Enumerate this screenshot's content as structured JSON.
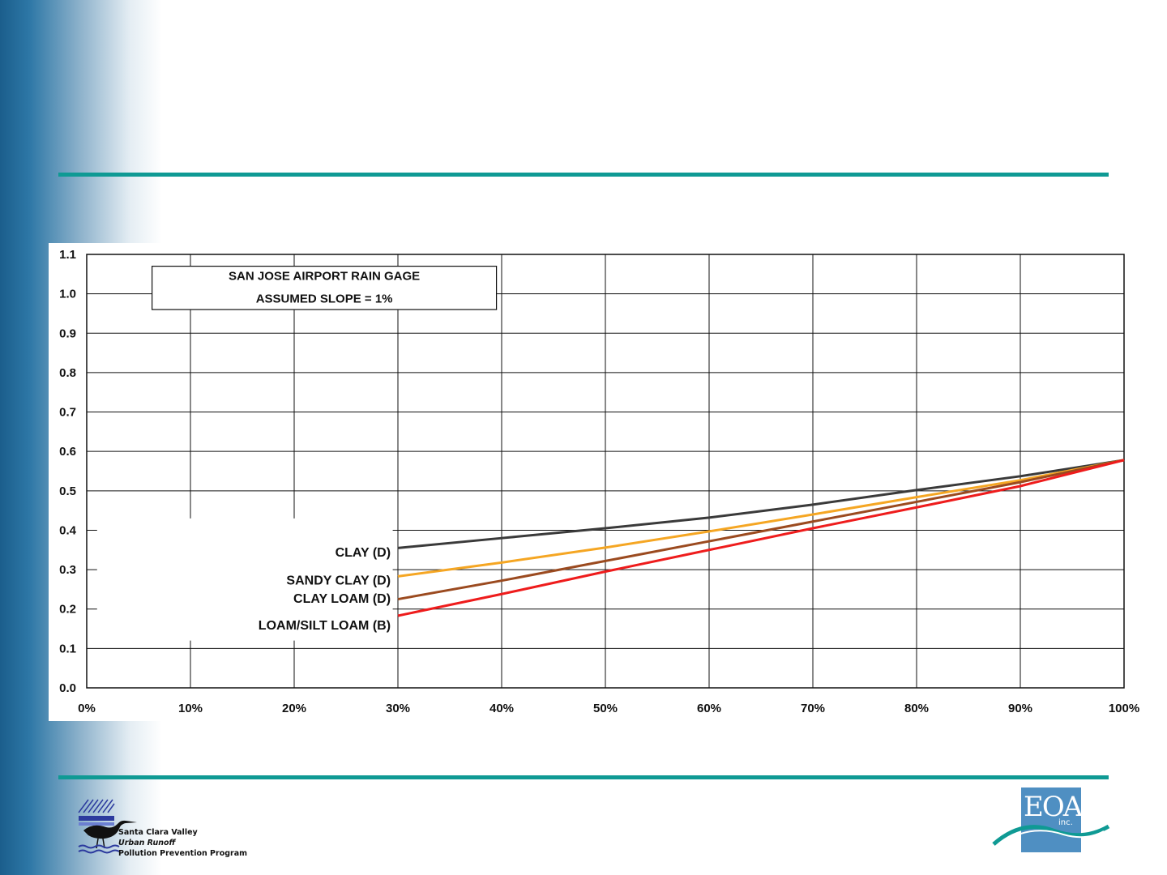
{
  "chart_data": {
    "type": "line",
    "title_box": [
      "SAN JOSE AIRPORT RAIN GAGE",
      "ASSUMED SLOPE = 1%"
    ],
    "x": [
      30,
      40,
      50,
      60,
      70,
      80,
      90,
      100
    ],
    "x_ticks": [
      "0%",
      "10%",
      "20%",
      "30%",
      "40%",
      "50%",
      "60%",
      "70%",
      "80%",
      "90%",
      "100%"
    ],
    "y_ticks": [
      "0.0",
      "0.1",
      "0.2",
      "0.3",
      "0.4",
      "0.5",
      "0.6",
      "0.7",
      "0.8",
      "0.9",
      "1.0",
      "1.1"
    ],
    "xlim": [
      0,
      100
    ],
    "ylim": [
      0,
      1.1
    ],
    "grid": true,
    "series": [
      {
        "name": "CLAY (D)",
        "color": "#3a3a3a",
        "values": [
          0.355,
          0.38,
          0.405,
          0.432,
          0.465,
          0.502,
          0.537,
          0.578
        ]
      },
      {
        "name": "SANDY CLAY (D)",
        "color": "#f5a623",
        "values": [
          0.283,
          0.318,
          0.356,
          0.397,
          0.44,
          0.484,
          0.527,
          0.578
        ]
      },
      {
        "name": "CLAY LOAM (D)",
        "color": "#9b4a1f",
        "values": [
          0.225,
          0.272,
          0.322,
          0.372,
          0.422,
          0.472,
          0.522,
          0.578
        ]
      },
      {
        "name": "LOAM/SILT LOAM (B)",
        "color": "#ee1c1c",
        "values": [
          0.183,
          0.238,
          0.295,
          0.35,
          0.405,
          0.458,
          0.512,
          0.578
        ]
      }
    ]
  },
  "logos": {
    "left_lines": [
      "Santa Clara Valley",
      "Urban Runoff",
      "Pollution Prevention Program"
    ],
    "right_wordmark": "EOA",
    "right_suffix": "inc."
  }
}
